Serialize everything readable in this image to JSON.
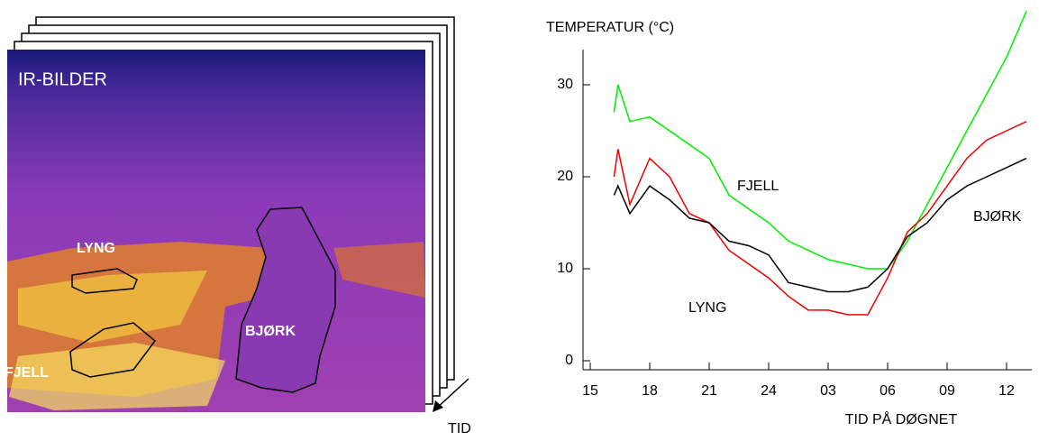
{
  "image": {
    "title": "IR-BILDER",
    "regions": [
      "LYNG",
      "FJELL",
      "BJØRK"
    ],
    "arrow_label": "TID"
  },
  "chart_data": {
    "type": "line",
    "y_label": "TEMPERATUR (°C)",
    "x_label": "TID PÅ DØGNET",
    "x": [
      16.2,
      16.4,
      17,
      18,
      19,
      20,
      21,
      22,
      23,
      24,
      25,
      26,
      27,
      28,
      29,
      30,
      31,
      32,
      33,
      34,
      35,
      36,
      37
    ],
    "series": [
      {
        "name": "FJELL",
        "color": "#00ee00",
        "values": [
          27,
          30,
          26,
          26.5,
          25,
          23.5,
          22,
          18,
          16.5,
          15,
          13,
          12,
          11,
          10.5,
          10,
          10,
          13,
          17,
          21,
          25,
          29,
          33,
          38
        ]
      },
      {
        "name": "LYNG",
        "color": "#ee0000",
        "values": [
          20,
          23,
          17,
          22,
          20,
          16,
          15,
          12,
          10.5,
          9,
          7,
          5.5,
          5.5,
          5,
          5,
          9,
          14,
          16,
          19,
          22,
          24,
          25,
          26
        ]
      },
      {
        "name": "BJØRK",
        "color": "#000000",
        "values": [
          18,
          19,
          16,
          19,
          17.5,
          15.5,
          15,
          13,
          12.5,
          11.5,
          8.5,
          8,
          7.5,
          7.5,
          8,
          10,
          13.5,
          15,
          17.5,
          19,
          20,
          21,
          22
        ]
      }
    ],
    "xlim": [
      15,
      37.3
    ],
    "ylim": [
      0,
      34
    ],
    "xticks": [
      15,
      18,
      21,
      24,
      {
        "value": 27,
        "label": "03"
      },
      {
        "value": 30,
        "label": "06"
      },
      {
        "value": 33,
        "label": "09"
      },
      {
        "value": 36,
        "label": "12"
      }
    ],
    "yticks": [
      0,
      10,
      20,
      30
    ]
  }
}
